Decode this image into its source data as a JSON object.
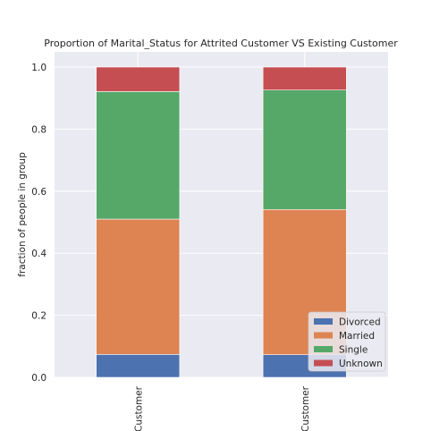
{
  "chart_data": {
    "type": "bar",
    "stacked": true,
    "title": "Proportion of Marital_Status for Attrited Customer VS Existing Customer",
    "xlabel": "",
    "ylabel": "fraction of people in group",
    "ylim": [
      0,
      1.0
    ],
    "yticks": [
      "0.0",
      "0.2",
      "0.4",
      "0.6",
      "0.8",
      "1.0"
    ],
    "categories": [
      "Customer",
      "Customer"
    ],
    "series": [
      {
        "name": "Divorced",
        "color": "#4c72b0",
        "values": [
          0.074,
          0.073
        ]
      },
      {
        "name": "Married",
        "color": "#dd8452",
        "values": [
          0.436,
          0.468
        ]
      },
      {
        "name": "Single",
        "color": "#55a868",
        "values": [
          0.411,
          0.385
        ]
      },
      {
        "name": "Unknown",
        "color": "#c44e52",
        "values": [
          0.079,
          0.074
        ]
      }
    ],
    "grid": true,
    "legend_position": "lower-right",
    "background": "#eaeaf2"
  }
}
